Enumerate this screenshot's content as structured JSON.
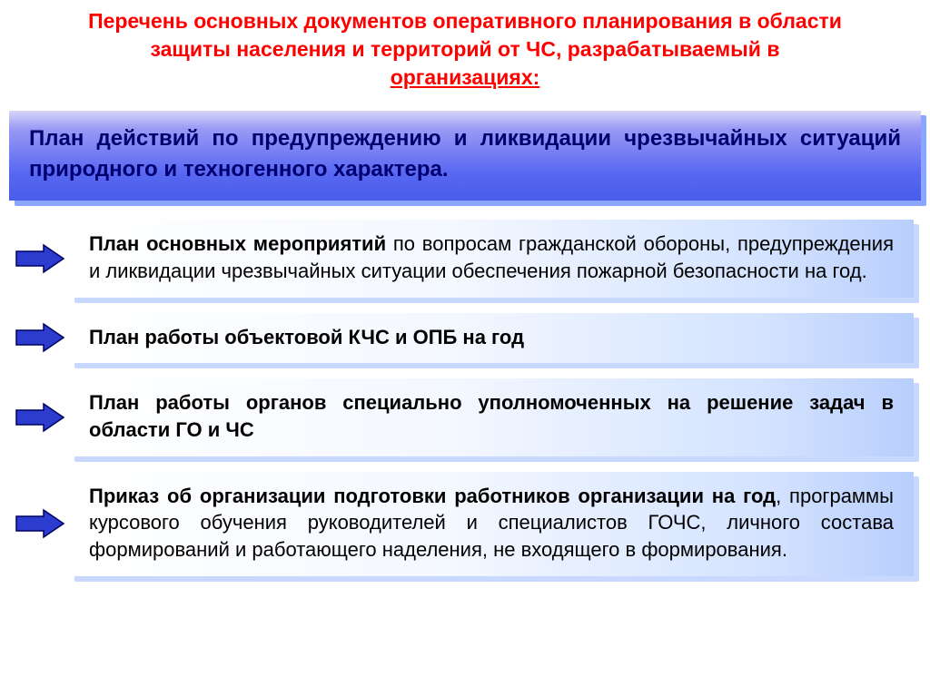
{
  "header": {
    "text_line1": "Перечень основных документов оперативного планирования в области",
    "text_line2": "защиты населения и территорий от ЧС, разрабатываемый в",
    "text_line3_underlined": "организациях:",
    "color": "#ff0000",
    "fontsize": 23
  },
  "intro": {
    "text": "План действий по предупреждению и ликвидации чрезвычайных ситуаций природного и техногенного характера.",
    "text_color": "#000070",
    "fontsize": 24,
    "gradient_from": "#d7d6f7",
    "gradient_to": "#4a5de8",
    "shadow_color": "#8aa6ff"
  },
  "cards": {
    "text_color": "#000000",
    "fontsize": 22,
    "gradient_from": "#ffffff",
    "gradient_to": "#b8cefc",
    "shadow_color": "#c8d8ff",
    "arrow_fill": "#2b3ccf",
    "arrow_stroke": "#000060",
    "items": [
      {
        "bold": "План основных мероприятий",
        "rest": " по вопросам гражданской обороны, предупреждения и ликвидации чрезвычайных ситуации обеспечения пожарной безопасности на год."
      },
      {
        "bold": "План работы объектовой КЧС и ОПБ на год",
        "rest": ""
      },
      {
        "bold": "План работы органов специально уполномоченных на решение задач в области ГО и ЧС",
        "rest": ""
      },
      {
        "bold": "Приказ об организации подготовки работников организации на год",
        "rest": ", программы курсового обучения руководителей и специалистов ГОЧС, личного состава формирований и работающего наделения, не входящего в формирования."
      }
    ]
  }
}
